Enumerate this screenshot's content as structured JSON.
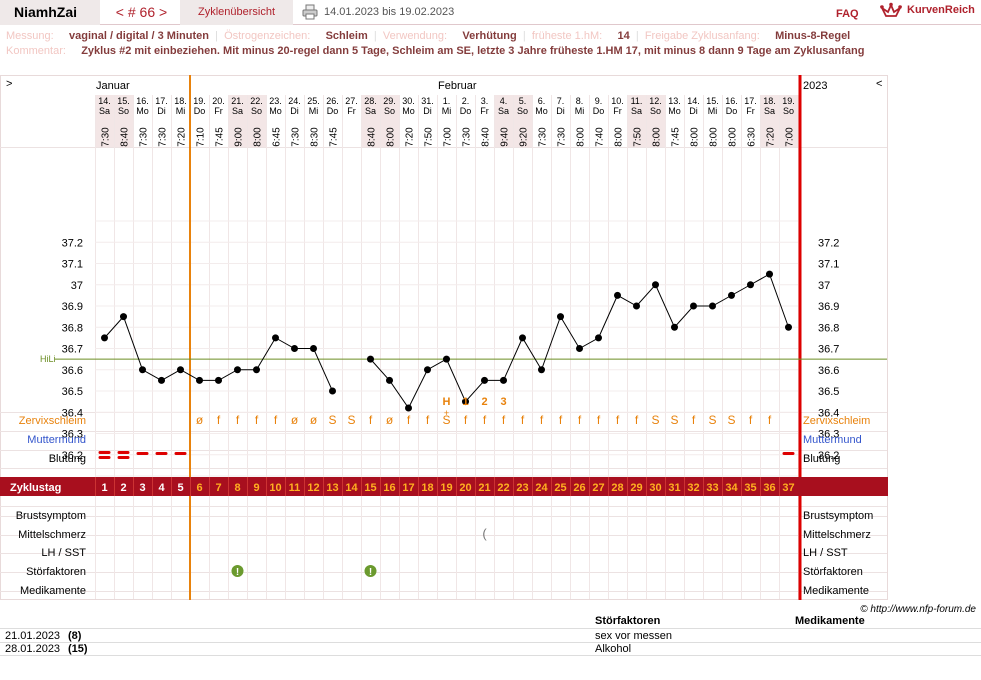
{
  "topbar": {
    "user": "NiamhZai",
    "cycle_nav": "< # 66 >",
    "overview": "Zyklenübersicht",
    "range": "14.01.2023 bis 19.02.2023",
    "faq": "FAQ",
    "logo": "KurvenReich"
  },
  "info": {
    "messung_label": "Messung:",
    "messung": "vaginal / digital / 3 Minuten",
    "oestrogen_label": "Östrogenzeichen:",
    "oestrogen": "Schleim",
    "verwendung_label": "Verwendung:",
    "verwendung": "Verhütung",
    "hm_label": "früheste 1.hM:",
    "hm": "14",
    "freigabe_label": "Freigabe Zyklusanfang:",
    "freigabe": "Minus-8-Regel",
    "kommentar_label": "Kommentar:",
    "kommentar": "Zyklus #2  mit einbeziehen. Mit minus 20-regel dann 5 Tage,  Schleim am SE, letzte 3 Jahre früheste 1.HM 17, mit minus 8 dann 9 Tage am Zyklusanfang"
  },
  "chart": {
    "nav_left": ">",
    "nav_right": "<",
    "month_jan": "Januar",
    "month_feb": "Februar",
    "year": "2023",
    "hili_label": "HiLi",
    "hili_value": 36.65,
    "y_ticks": [
      "37.2",
      "37.1",
      "37",
      "36.9",
      "36.8",
      "36.7",
      "36.6",
      "36.5",
      "36.4",
      "36.3",
      "36.2"
    ],
    "markers": [
      "H",
      "1",
      "2",
      "3"
    ],
    "row_labels": {
      "zervix": "Zervixschleim",
      "muttermund": "Muttermund",
      "blutung": "Blutung",
      "zyklustag": "Zyklustag",
      "brust": "Brustsymptom",
      "mittel": "Mittelschmerz",
      "lh": "LH / SST",
      "stoer": "Störfaktoren",
      "medi": "Medikamente"
    },
    "copyright": "© http://www.nfp-forum.de",
    "colors": {
      "accent": "#b0222d",
      "orange": "#e8820c",
      "blue": "#3355cc",
      "green": "#6b9a2e",
      "hili": "#6b8e23"
    }
  },
  "days": [
    {
      "d": "14.",
      "w": "Sa",
      "t": "7:30",
      "z": "",
      "c": "1"
    },
    {
      "d": "15.",
      "w": "So",
      "t": "8:40",
      "z": "",
      "c": "2"
    },
    {
      "d": "16.",
      "w": "Mo",
      "t": "7:30",
      "z": "",
      "c": "3"
    },
    {
      "d": "17.",
      "w": "Di",
      "t": "7:30",
      "z": "",
      "c": "4"
    },
    {
      "d": "18.",
      "w": "Mi",
      "t": "7:20",
      "z": "",
      "c": "5"
    },
    {
      "d": "19.",
      "w": "Do",
      "t": "7:10",
      "z": "ø",
      "c": "6"
    },
    {
      "d": "20.",
      "w": "Fr",
      "t": "7:45",
      "z": "f",
      "c": "7"
    },
    {
      "d": "21.",
      "w": "Sa",
      "t": "9:00",
      "z": "f",
      "c": "8"
    },
    {
      "d": "22.",
      "w": "So",
      "t": "8:00",
      "z": "f",
      "c": "9"
    },
    {
      "d": "23.",
      "w": "Mo",
      "t": "6:45",
      "z": "f",
      "c": "10"
    },
    {
      "d": "24.",
      "w": "Di",
      "t": "7:30",
      "z": "ø",
      "c": "11"
    },
    {
      "d": "25.",
      "w": "Mi",
      "t": "8:30",
      "z": "ø",
      "c": "12"
    },
    {
      "d": "26.",
      "w": "Do",
      "t": "7:45",
      "z": "S",
      "c": "13"
    },
    {
      "d": "27.",
      "w": "Fr",
      "t": "",
      "z": "S",
      "c": "14"
    },
    {
      "d": "28.",
      "w": "Sa",
      "t": "8:40",
      "z": "f",
      "c": "15"
    },
    {
      "d": "29.",
      "w": "So",
      "t": "8:00",
      "z": "ø",
      "c": "16"
    },
    {
      "d": "30.",
      "w": "Mo",
      "t": "7:20",
      "z": "f",
      "c": "17"
    },
    {
      "d": "31.",
      "w": "Di",
      "t": "7:50",
      "z": "f",
      "c": "18"
    },
    {
      "d": "1.",
      "w": "Mi",
      "t": "7:00",
      "z": "S",
      "c": "19"
    },
    {
      "d": "2.",
      "w": "Do",
      "t": "7:30",
      "z": "f",
      "c": "20"
    },
    {
      "d": "3.",
      "w": "Fr",
      "t": "8:40",
      "z": "f",
      "c": "21"
    },
    {
      "d": "4.",
      "w": "Sa",
      "t": "9:40",
      "z": "f",
      "c": "22"
    },
    {
      "d": "5.",
      "w": "So",
      "t": "9:20",
      "z": "f",
      "c": "23"
    },
    {
      "d": "6.",
      "w": "Mo",
      "t": "7:30",
      "z": "f",
      "c": "24"
    },
    {
      "d": "7.",
      "w": "Di",
      "t": "7:30",
      "z": "f",
      "c": "25"
    },
    {
      "d": "8.",
      "w": "Mi",
      "t": "8:00",
      "z": "f",
      "c": "26"
    },
    {
      "d": "9.",
      "w": "Do",
      "t": "7:40",
      "z": "f",
      "c": "27"
    },
    {
      "d": "10.",
      "w": "Fr",
      "t": "8:00",
      "z": "f",
      "c": "28"
    },
    {
      "d": "11.",
      "w": "Sa",
      "t": "7:50",
      "z": "f",
      "c": "29"
    },
    {
      "d": "12.",
      "w": "So",
      "t": "8:00",
      "z": "S",
      "c": "30"
    },
    {
      "d": "13.",
      "w": "Mo",
      "t": "7:45",
      "z": "S",
      "c": "31"
    },
    {
      "d": "14.",
      "w": "Di",
      "t": "8:00",
      "z": "f",
      "c": "32"
    },
    {
      "d": "15.",
      "w": "Mi",
      "t": "8:00",
      "z": "S",
      "c": "33"
    },
    {
      "d": "16.",
      "w": "Do",
      "t": "8:00",
      "z": "S",
      "c": "34"
    },
    {
      "d": "17.",
      "w": "Fr",
      "t": "6:30",
      "z": "f",
      "c": "35"
    },
    {
      "d": "18.",
      "w": "Sa",
      "t": "7:20",
      "z": "f",
      "c": "36"
    },
    {
      "d": "19.",
      "w": "So",
      "t": "7:00",
      "z": "",
      "c": "37"
    }
  ],
  "chart_data": {
    "type": "line",
    "title": "",
    "x_cycle_days": [
      1,
      2,
      3,
      4,
      5,
      6,
      7,
      8,
      9,
      10,
      11,
      12,
      13,
      14,
      15,
      16,
      17,
      18,
      19,
      20,
      21,
      22,
      23,
      24,
      25,
      26,
      27,
      28,
      29,
      30,
      31,
      32,
      33,
      34,
      35,
      36,
      37
    ],
    "temperature": [
      36.75,
      36.85,
      36.6,
      36.55,
      36.6,
      36.55,
      36.55,
      36.6,
      36.6,
      36.75,
      36.7,
      36.7,
      36.5,
      null,
      36.65,
      36.55,
      36.42,
      36.6,
      36.65,
      36.45,
      36.55,
      36.55,
      36.75,
      36.6,
      36.85,
      36.7,
      36.75,
      36.95,
      36.9,
      37.0,
      36.8,
      36.9,
      36.9,
      36.95,
      37.0,
      37.05,
      36.8
    ],
    "ylim": [
      36.1,
      37.3
    ],
    "hili": 36.65,
    "cover_line_day": 6,
    "temp_high_markers": {
      "H": 19,
      "1": 20,
      "2": 21,
      "3": 22
    },
    "weekend_days": [
      1,
      2,
      8,
      9,
      15,
      16,
      22,
      23,
      29,
      30,
      36,
      37
    ],
    "blutung": {
      "1": "strong",
      "2": "strong",
      "3": "light",
      "4": "light",
      "5": "light",
      "37": "light"
    },
    "stoerfaktoren_days": [
      8,
      15
    ],
    "mittelschmerz_days": [
      21
    ],
    "zervix_peak_day": 19
  },
  "footer": {
    "col_stoer": "Störfaktoren",
    "col_medi": "Medikamente",
    "rows": [
      {
        "date": "21.01.2023",
        "day": "(8)",
        "text": "sex vor messen"
      },
      {
        "date": "28.01.2023",
        "day": "(15)",
        "text": "Alkohol"
      }
    ]
  }
}
